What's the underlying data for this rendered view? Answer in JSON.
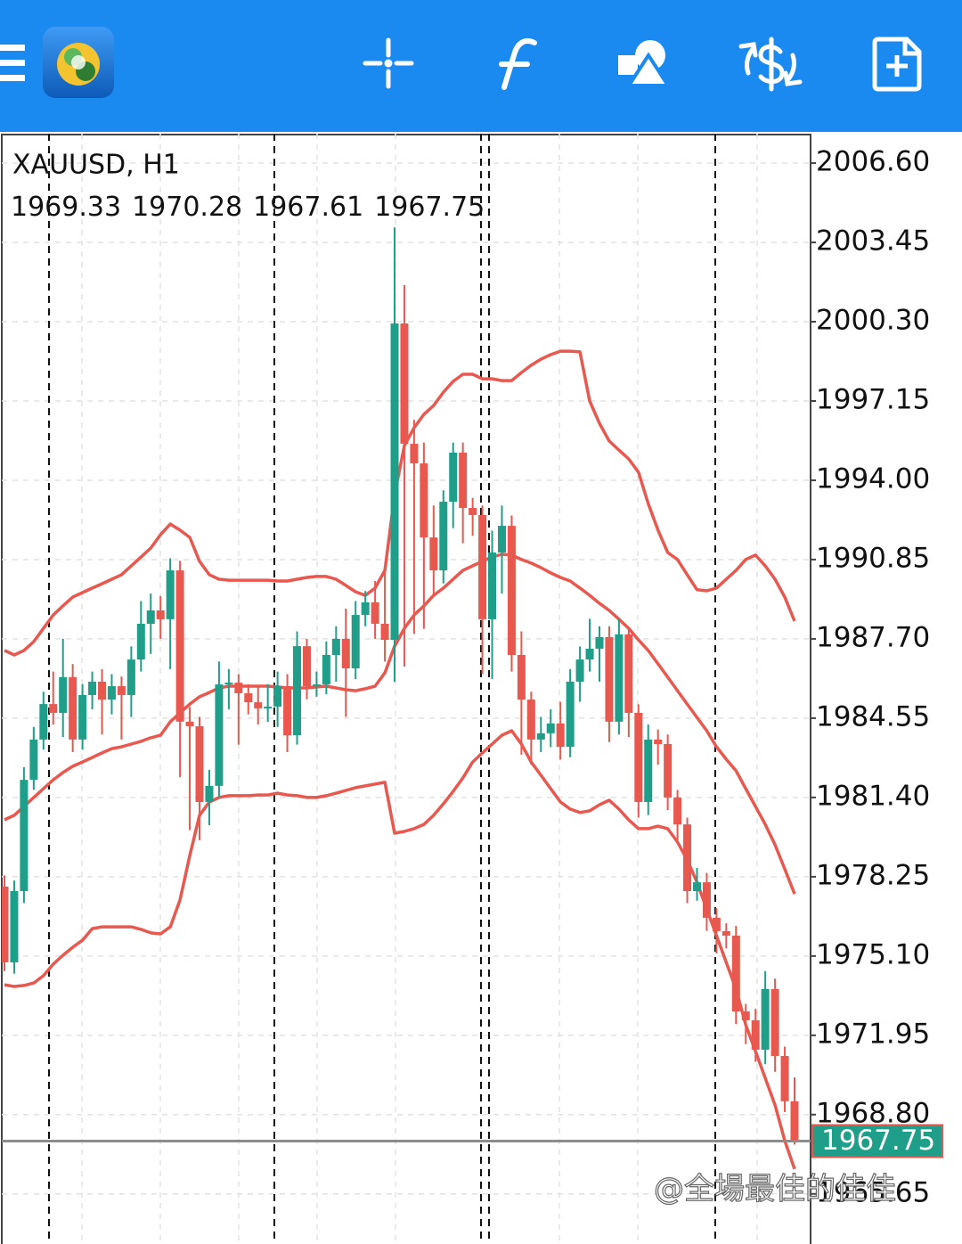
{
  "chart_data": {
    "type": "candlestick",
    "title": "XAUUSD, H1",
    "watermark": "@全場最佳的佳佳",
    "up_color": "#1f9e89",
    "down_color": "#e8584f",
    "band_color": "#e8584f",
    "price_line_color": "#8c8c8c",
    "grid": true,
    "ylim": [
      1963.66,
      2007.77
    ],
    "yticks": [
      {
        "value": 2006.6,
        "label": "2006.60"
      },
      2003.45,
      {
        "value": 2000.3,
        "label": "2000.30"
      },
      1997.15,
      {
        "value": 1994.0,
        "label": "1994.00"
      },
      1990.85,
      {
        "value": 1987.7,
        "label": "1987.70"
      },
      1984.55,
      {
        "value": 1981.4,
        "label": "1981.40"
      },
      1978.25,
      {
        "value": 1975.1,
        "label": "1975.10"
      },
      1971.95,
      {
        "value": 1968.8,
        "label": "1968.80"
      },
      1965.65
    ],
    "open": [
      1977.86,
      1974.85,
      1977.68,
      1982.1,
      1983.7,
      1985.11,
      1984.76,
      1986.18,
      1983.7,
      1985.47,
      1986.0,
      1985.29,
      1985.82,
      1985.47,
      1986.88,
      1988.3,
      1988.83,
      1988.48,
      1990.42,
      1984.41,
      1984.23,
      1981.22,
      1981.86,
      1985.89,
      1985.96,
      1985.54,
      1985.18,
      1984.94,
      1985.01,
      1985.82,
      1983.87,
      1987.41,
      1985.82,
      1985.89,
      1987.06,
      1987.7,
      1986.53,
      1988.65,
      1989.15,
      1988.3,
      1987.66,
      2000.23,
      1995.45,
      1994.67,
      1991.73,
      1990.42,
      1993.15,
      1995.1,
      1992.9,
      1992.62,
      1988.48,
      1991.13,
      1992.19,
      1987.06,
      1985.29,
      1983.7,
      1983.95,
      1984.34,
      1983.41,
      1986.0,
      1986.88,
      1987.31,
      1987.77,
      1984.41,
      1987.88,
      1984.76,
      1981.22,
      1983.7,
      1983.52,
      1981.4,
      1980.33,
      1977.68,
      1978.03,
      1976.62,
      1976.09,
      1975.91,
      1972.9,
      1972.55,
      1971.38,
      1973.79,
      1971.13,
      1969.33
    ],
    "high": [
      1978.3,
      1978.1,
      1982.6,
      1984.2,
      1985.6,
      1986.4,
      1987.7,
      1986.7,
      1985.9,
      1986.4,
      1986.5,
      1986.3,
      1986.2,
      1987.4,
      1989.2,
      1989.5,
      1989.4,
      1990.9,
      1990.8,
      1985.0,
      1984.6,
      1982.5,
      1986.8,
      1986.5,
      1986.3,
      1985.9,
      1985.8,
      1985.9,
      1986.4,
      1986.3,
      1988.0,
      1987.7,
      1986.4,
      1987.6,
      1988.2,
      1988.9,
      1989.2,
      1989.6,
      1990.0,
      1990.6,
      2004.05,
      2001.75,
      1996.4,
      1995.5,
      1993.0,
      1993.6,
      1995.5,
      1995.5,
      1993.3,
      1993.0,
      1992.0,
      1993.0,
      1992.6,
      1988.0,
      1985.6,
      1984.6,
      1984.9,
      1985.2,
      1986.5,
      1987.4,
      1988.5,
      1988.2,
      1988.2,
      1988.5,
      1988.1,
      1985.1,
      1984.3,
      1984.1,
      1983.9,
      1981.7,
      1980.6,
      1978.6,
      1978.4,
      1977.0,
      1976.4,
      1976.3,
      1973.2,
      1973.0,
      1974.5,
      1974.2,
      1971.5,
      1970.28
    ],
    "low": [
      1974.5,
      1974.4,
      1977.2,
      1981.7,
      1983.3,
      1984.3,
      1983.8,
      1983.2,
      1983.3,
      1984.9,
      1983.9,
      1984.7,
      1983.7,
      1984.6,
      1986.4,
      1987.1,
      1987.7,
      1986.5,
      1982.2,
      1980.1,
      1979.7,
      1980.3,
      1981.4,
      1984.9,
      1983.5,
      1984.7,
      1984.3,
      1984.4,
      1984.2,
      1983.2,
      1983.5,
      1985.3,
      1985.4,
      1985.5,
      1986.0,
      1984.6,
      1986.1,
      1988.2,
      1987.7,
      1986.8,
      1985.99,
      1986.6,
      1987.9,
      1988.1,
      1989.4,
      1989.9,
      1992.1,
      1991.5,
      1991.8,
      1986.3,
      1986.1,
      1989.5,
      1986.4,
      1983.1,
      1982.7,
      1983.2,
      1983.4,
      1982.9,
      1983.0,
      1985.2,
      1986.4,
      1986.0,
      1983.6,
      1983.9,
      1983.8,
      1980.6,
      1980.7,
      1982.7,
      1980.9,
      1979.7,
      1977.2,
      1977.3,
      1976.1,
      1975.2,
      1975.4,
      1972.4,
      1971.6,
      1970.9,
      1970.8,
      1970.5,
      1968.9,
      1967.61
    ],
    "close": [
      1974.85,
      1977.68,
      1982.1,
      1983.7,
      1985.11,
      1984.76,
      1986.18,
      1983.7,
      1985.47,
      1986.0,
      1985.29,
      1985.82,
      1985.47,
      1986.88,
      1988.3,
      1988.83,
      1988.48,
      1990.42,
      1984.41,
      1984.23,
      1981.22,
      1981.86,
      1985.89,
      1985.96,
      1985.54,
      1985.18,
      1984.94,
      1985.01,
      1985.82,
      1983.87,
      1987.41,
      1985.82,
      1985.89,
      1987.06,
      1987.7,
      1986.53,
      1988.65,
      1989.15,
      1988.3,
      1987.66,
      2000.23,
      1995.45,
      1994.67,
      1991.73,
      1990.42,
      1993.15,
      1995.1,
      1992.9,
      1992.62,
      1988.48,
      1991.13,
      1992.19,
      1987.06,
      1985.29,
      1983.7,
      1983.95,
      1984.34,
      1983.41,
      1986.0,
      1986.88,
      1987.31,
      1987.77,
      1984.41,
      1987.88,
      1984.76,
      1981.22,
      1983.7,
      1983.52,
      1981.4,
      1980.33,
      1977.68,
      1978.03,
      1976.62,
      1976.09,
      1975.91,
      1972.9,
      1972.55,
      1971.38,
      1973.79,
      1971.13,
      1969.33,
      1967.75
    ],
    "bands": {
      "upper": [
        1987.24,
        1987.06,
        1987.24,
        1987.59,
        1988.12,
        1988.65,
        1989.01,
        1989.36,
        1989.54,
        1989.72,
        1989.89,
        1990.07,
        1990.25,
        1990.6,
        1990.95,
        1991.31,
        1991.84,
        1992.26,
        1992.02,
        1991.73,
        1990.78,
        1990.25,
        1990.07,
        1990.03,
        1990.03,
        1990.03,
        1990.03,
        1990.03,
        1990.0,
        1990.0,
        1990.07,
        1990.14,
        1990.18,
        1990.18,
        1990.07,
        1989.82,
        1989.57,
        1989.43,
        1989.72,
        1990.42,
        1993.43,
        1995.38,
        1996.09,
        1996.62,
        1996.97,
        1997.5,
        1997.93,
        1998.21,
        1998.21,
        1998.03,
        1998.03,
        1997.96,
        1997.96,
        1998.28,
        1998.57,
        1998.81,
        1998.99,
        1999.13,
        1999.13,
        1999.1,
        1997.15,
        1996.26,
        1995.56,
        1995.2,
        1994.85,
        1994.32,
        1993.08,
        1992.02,
        1991.13,
        1990.85,
        1990.25,
        1989.65,
        1989.61,
        1989.72,
        1990.07,
        1990.42,
        1990.85,
        1991.03,
        1990.6,
        1990.07,
        1989.36,
        1988.41
      ],
      "middle": [
        1980.51,
        1980.69,
        1981.04,
        1981.4,
        1981.75,
        1982.1,
        1982.39,
        1982.64,
        1982.81,
        1982.99,
        1983.17,
        1983.34,
        1983.41,
        1983.52,
        1983.63,
        1983.77,
        1983.87,
        1984.41,
        1984.76,
        1985.11,
        1985.4,
        1985.57,
        1985.75,
        1985.82,
        1985.82,
        1985.82,
        1985.82,
        1985.82,
        1985.79,
        1985.75,
        1985.75,
        1985.75,
        1985.79,
        1985.82,
        1985.75,
        1985.68,
        1985.64,
        1985.72,
        1985.82,
        1986.35,
        1987.41,
        1988.12,
        1988.65,
        1989.01,
        1989.43,
        1989.72,
        1990.07,
        1990.42,
        1990.6,
        1990.78,
        1990.95,
        1991.06,
        1991.03,
        1990.85,
        1990.71,
        1990.53,
        1990.32,
        1990.14,
        1990.0,
        1989.72,
        1989.43,
        1989.11,
        1988.83,
        1988.48,
        1988.12,
        1987.66,
        1987.24,
        1986.71,
        1986.18,
        1985.64,
        1985.11,
        1984.58,
        1984.05,
        1983.41,
        1982.92,
        1982.46,
        1981.75,
        1981.04,
        1980.33,
        1979.52,
        1978.56,
        1977.57
      ],
      "lower": [
        1973.96,
        1973.89,
        1973.93,
        1974.03,
        1974.32,
        1974.78,
        1975.13,
        1975.45,
        1975.73,
        1976.19,
        1976.26,
        1976.26,
        1976.26,
        1976.26,
        1976.16,
        1976.02,
        1975.98,
        1976.26,
        1977.33,
        1979.1,
        1980.69,
        1981.22,
        1981.4,
        1981.47,
        1981.47,
        1981.47,
        1981.5,
        1981.5,
        1981.57,
        1981.5,
        1981.47,
        1981.4,
        1981.4,
        1981.47,
        1981.57,
        1981.68,
        1981.79,
        1981.86,
        1981.93,
        1982.0,
        1979.98,
        1980.05,
        1980.16,
        1980.33,
        1980.69,
        1981.15,
        1981.64,
        1982.18,
        1982.81,
        1983.17,
        1983.52,
        1983.87,
        1984.05,
        1983.52,
        1982.81,
        1982.28,
        1981.75,
        1981.22,
        1980.94,
        1980.8,
        1980.87,
        1981.11,
        1981.29,
        1980.94,
        1980.51,
        1980.16,
        1980.16,
        1980.26,
        1980.16,
        1979.63,
        1978.92,
        1978.03,
        1976.97,
        1975.91,
        1974.85,
        1973.79,
        1972.37,
        1971.31,
        1970.25,
        1969.18,
        1967.77,
        1966.64
      ]
    }
  }
}
